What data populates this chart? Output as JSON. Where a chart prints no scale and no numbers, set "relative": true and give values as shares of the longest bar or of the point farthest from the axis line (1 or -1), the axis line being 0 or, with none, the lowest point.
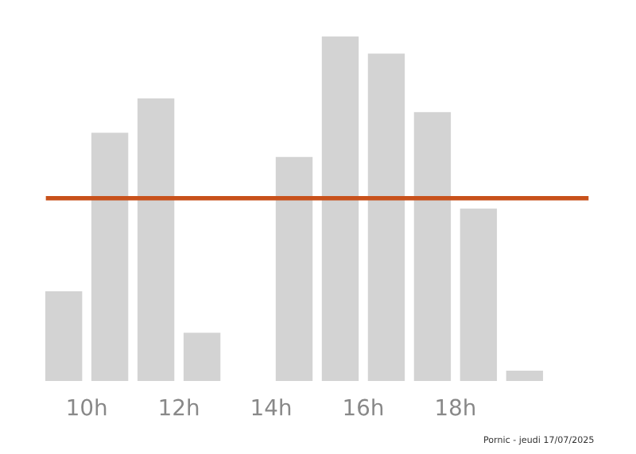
{
  "chart_data": {
    "type": "bar",
    "relative": true,
    "x": [
      9.5,
      10.5,
      11.5,
      12.5,
      13.5,
      14.5,
      15.5,
      16.5,
      17.5,
      18.5,
      19.5
    ],
    "values": [
      0.26,
      0.72,
      0.82,
      0.14,
      0,
      0.65,
      1,
      0.95,
      0.78,
      0.5,
      0.03
    ],
    "color": "#d3d3d3",
    "xlim": [
      9,
      20
    ],
    "xticks": [
      {
        "value": 10,
        "label": "10h"
      },
      {
        "value": 12,
        "label": "12h"
      },
      {
        "value": 14,
        "label": "14h"
      },
      {
        "value": 16,
        "label": "16h"
      },
      {
        "value": 18,
        "label": "18h"
      }
    ],
    "ref_lines": [
      {
        "axis": "y",
        "value": 0.53,
        "color": "#c8511b"
      }
    ],
    "grid": false,
    "legend": false,
    "tick_labels": "x",
    "annotations": [
      "Pornic - jeudi 17/07/2025"
    ]
  }
}
